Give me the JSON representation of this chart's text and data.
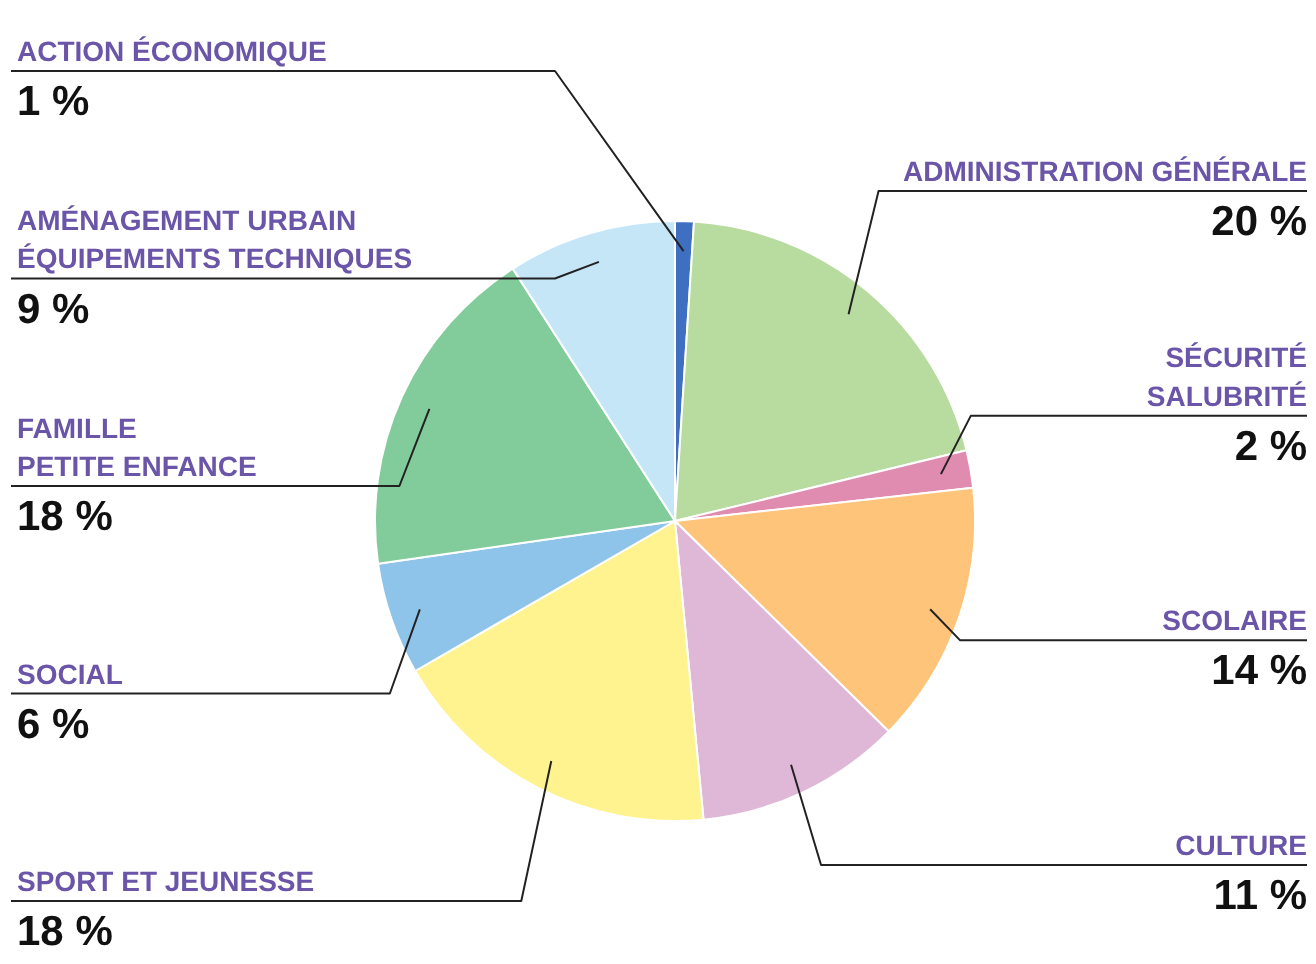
{
  "chart_data": {
    "type": "pie",
    "categories": [
      "ACTION ÉCONOMIQUE",
      "ADMINISTRATION GÉNÉRALE",
      "SÉCURITÉ\nSALUBRITÉ",
      "SCOLAIRE",
      "CULTURE",
      "SPORT ET JEUNESSE",
      "SOCIAL",
      "FAMILLE\nPETITE ENFANCE",
      "AMÉNAGEMENT URBAIN\nÉQUIPEMENTS TECHNIQUES"
    ],
    "values": [
      1,
      20,
      2,
      14,
      11,
      18,
      6,
      18,
      9
    ],
    "colors": [
      "#3f6fc0",
      "#b8dba0",
      "#e08cb0",
      "#fec479",
      "#dfb8d8",
      "#fff38f",
      "#8fc4ea",
      "#82cb9a",
      "#c4e6f7"
    ],
    "value_labels": [
      "1 %",
      "20 %",
      "2 %",
      "14 %",
      "11 %",
      "18 %",
      "6 %",
      "18 %",
      "9 %"
    ]
  }
}
